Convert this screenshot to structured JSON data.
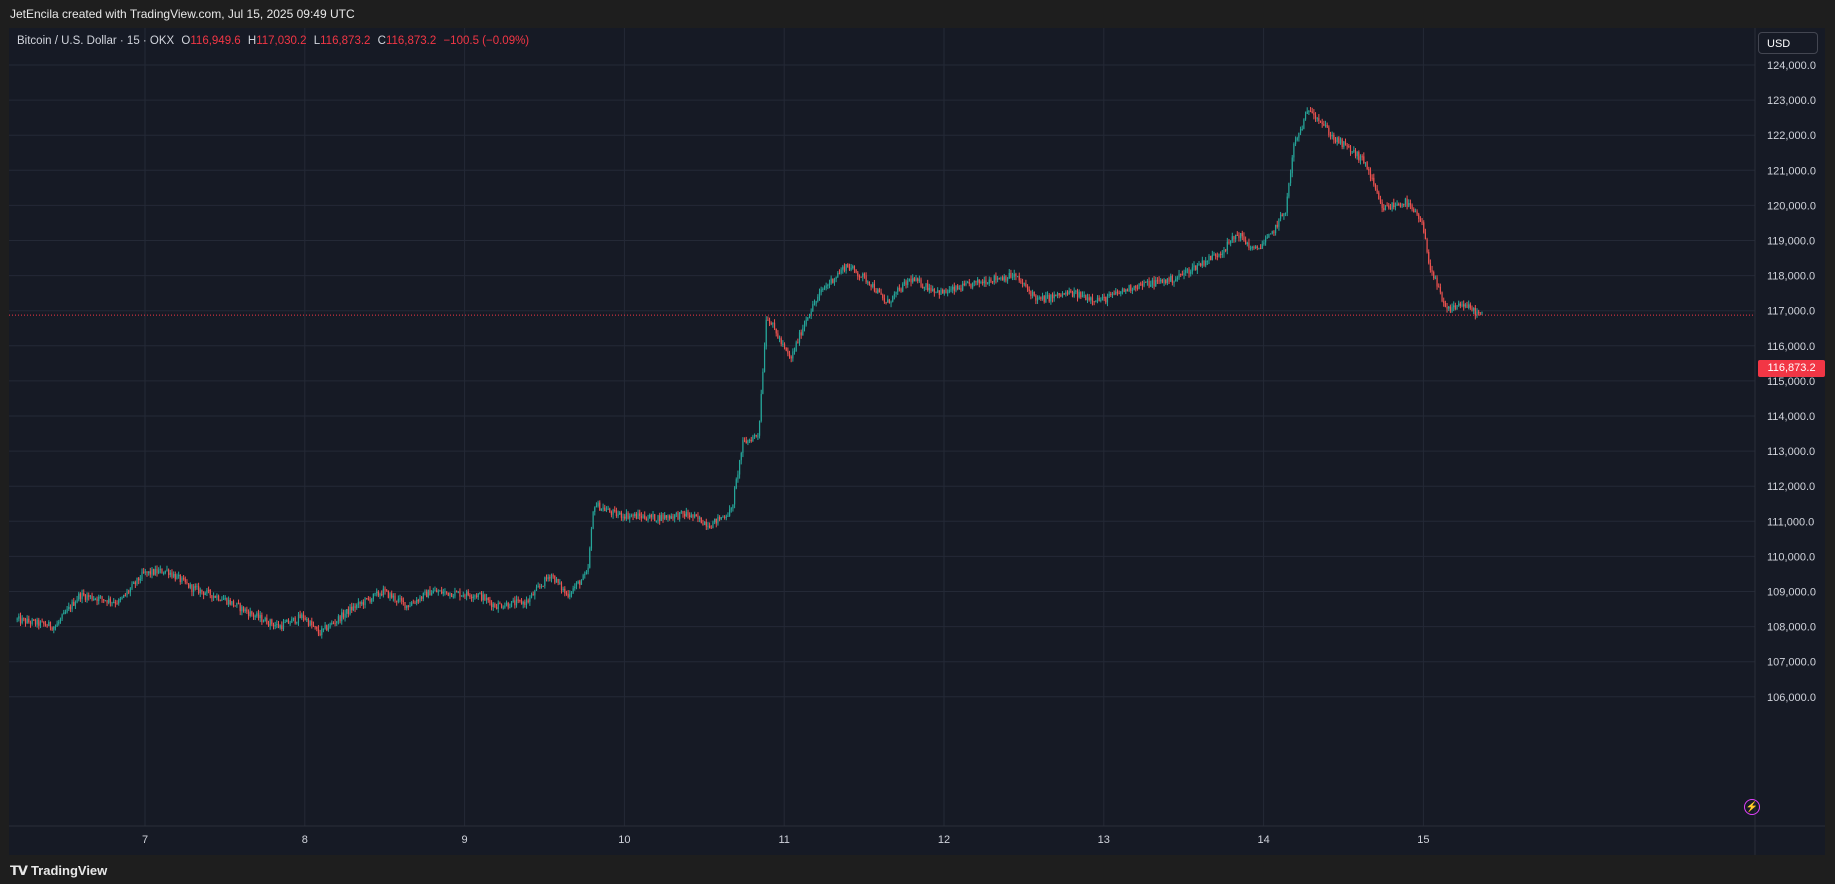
{
  "header": {
    "credit": "JetEncila created with TradingView.com, Jul 15, 2025 09:49 UTC"
  },
  "legend": {
    "symbol": "Bitcoin / U.S. Dollar · 15 · OKX",
    "o_label": "O",
    "o_value": "116,949.6",
    "h_label": "H",
    "h_value": "117,030.2",
    "l_label": "L",
    "l_value": "116,873.2",
    "c_label": "C",
    "c_value": "116,873.2",
    "change": "−100.5 (−0.09%)"
  },
  "currency": "USD",
  "price_badge": "116,873.2",
  "footer": {
    "logo_text": "TradingView"
  },
  "colors": {
    "background": "#161a25",
    "up": "#26a69a",
    "down": "#ef5350",
    "grid": "#242936",
    "last_price": "#f23645"
  },
  "chart_data": {
    "type": "candlestick",
    "interval": "15",
    "x_ticks": [
      "7",
      "8",
      "9",
      "10",
      "11",
      "12",
      "13",
      "14",
      "15"
    ],
    "y_ticks": [
      "106,000.0",
      "107,000.0",
      "108,000.0",
      "109,000.0",
      "110,000.0",
      "111,000.0",
      "112,000.0",
      "113,000.0",
      "114,000.0",
      "115,000.0",
      "116,000.0",
      "117,000.0",
      "118,000.0",
      "119,000.0",
      "120,000.0",
      "121,000.0",
      "122,000.0",
      "123,000.0",
      "124,000.0"
    ],
    "ylim": [
      105900,
      124500
    ],
    "last_price": 116873.2,
    "grid": true,
    "price_path": [
      {
        "day": 6.2,
        "price": 108200
      },
      {
        "day": 6.45,
        "price": 108000
      },
      {
        "day": 6.6,
        "price": 108900
      },
      {
        "day": 6.85,
        "price": 108700
      },
      {
        "day": 7.0,
        "price": 109500
      },
      {
        "day": 7.15,
        "price": 109600
      },
      {
        "day": 7.3,
        "price": 109100
      },
      {
        "day": 7.5,
        "price": 108800
      },
      {
        "day": 7.7,
        "price": 108300
      },
      {
        "day": 7.85,
        "price": 108000
      },
      {
        "day": 8.0,
        "price": 108300
      },
      {
        "day": 8.1,
        "price": 107800
      },
      {
        "day": 8.3,
        "price": 108500
      },
      {
        "day": 8.5,
        "price": 109000
      },
      {
        "day": 8.65,
        "price": 108600
      },
      {
        "day": 8.8,
        "price": 109000
      },
      {
        "day": 9.1,
        "price": 108900
      },
      {
        "day": 9.2,
        "price": 108600
      },
      {
        "day": 9.4,
        "price": 108700
      },
      {
        "day": 9.55,
        "price": 109500
      },
      {
        "day": 9.65,
        "price": 108900
      },
      {
        "day": 9.78,
        "price": 109500
      },
      {
        "day": 9.82,
        "price": 111500
      },
      {
        "day": 9.95,
        "price": 111200
      },
      {
        "day": 10.2,
        "price": 111100
      },
      {
        "day": 10.4,
        "price": 111200
      },
      {
        "day": 10.55,
        "price": 110900
      },
      {
        "day": 10.68,
        "price": 111300
      },
      {
        "day": 10.75,
        "price": 113200
      },
      {
        "day": 10.85,
        "price": 113500
      },
      {
        "day": 10.9,
        "price": 116900
      },
      {
        "day": 11.0,
        "price": 116000
      },
      {
        "day": 11.05,
        "price": 115600
      },
      {
        "day": 11.15,
        "price": 116800
      },
      {
        "day": 11.25,
        "price": 117600
      },
      {
        "day": 11.4,
        "price": 118300
      },
      {
        "day": 11.55,
        "price": 117800
      },
      {
        "day": 11.65,
        "price": 117200
      },
      {
        "day": 11.8,
        "price": 117900
      },
      {
        "day": 12.0,
        "price": 117500
      },
      {
        "day": 12.3,
        "price": 117900
      },
      {
        "day": 12.45,
        "price": 118000
      },
      {
        "day": 12.6,
        "price": 117300
      },
      {
        "day": 12.8,
        "price": 117500
      },
      {
        "day": 13.0,
        "price": 117300
      },
      {
        "day": 13.2,
        "price": 117700
      },
      {
        "day": 13.45,
        "price": 117900
      },
      {
        "day": 13.6,
        "price": 118300
      },
      {
        "day": 13.75,
        "price": 118700
      },
      {
        "day": 13.85,
        "price": 119200
      },
      {
        "day": 13.95,
        "price": 118700
      },
      {
        "day": 14.05,
        "price": 119100
      },
      {
        "day": 14.15,
        "price": 119900
      },
      {
        "day": 14.2,
        "price": 121700
      },
      {
        "day": 14.3,
        "price": 122800
      },
      {
        "day": 14.45,
        "price": 121900
      },
      {
        "day": 14.55,
        "price": 121600
      },
      {
        "day": 14.65,
        "price": 121200
      },
      {
        "day": 14.75,
        "price": 119900
      },
      {
        "day": 14.9,
        "price": 120100
      },
      {
        "day": 15.0,
        "price": 119500
      },
      {
        "day": 15.05,
        "price": 118300
      },
      {
        "day": 15.15,
        "price": 117000
      },
      {
        "day": 15.25,
        "price": 117200
      },
      {
        "day": 15.37,
        "price": 116873
      }
    ]
  }
}
